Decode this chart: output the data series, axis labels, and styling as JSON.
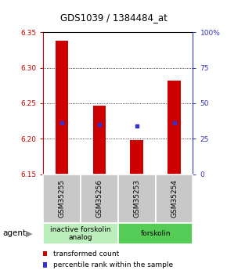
{
  "title": "GDS1039 / 1384484_at",
  "samples": [
    "GSM35255",
    "GSM35256",
    "GSM35253",
    "GSM35254"
  ],
  "bar_bottoms": [
    6.15,
    6.15,
    6.15,
    6.15
  ],
  "bar_tops": [
    6.338,
    6.247,
    6.198,
    6.282
  ],
  "percentile_values": [
    6.222,
    6.22,
    6.218,
    6.222
  ],
  "ylim": [
    6.15,
    6.35
  ],
  "yticks": [
    6.15,
    6.2,
    6.25,
    6.3,
    6.35
  ],
  "right_yticks": [
    0,
    25,
    50,
    75,
    100
  ],
  "bar_color": "#cc0000",
  "dot_color": "#3333cc",
  "bar_width": 0.35,
  "groups": [
    {
      "label": "inactive forskolin\nanalog",
      "cols": [
        0,
        1
      ],
      "color": "#bbeebb"
    },
    {
      "label": "forskolin",
      "cols": [
        2,
        3
      ],
      "color": "#55cc55"
    }
  ],
  "legend_items": [
    {
      "color": "#cc0000",
      "label": "transformed count"
    },
    {
      "color": "#3333cc",
      "label": "percentile rank within the sample"
    }
  ],
  "left_tick_color": "#cc0000",
  "right_tick_color": "#3333bb",
  "title_fontsize": 8.5,
  "tick_fontsize": 6.5,
  "label_fontsize": 6.5,
  "legend_fontsize": 6.5
}
